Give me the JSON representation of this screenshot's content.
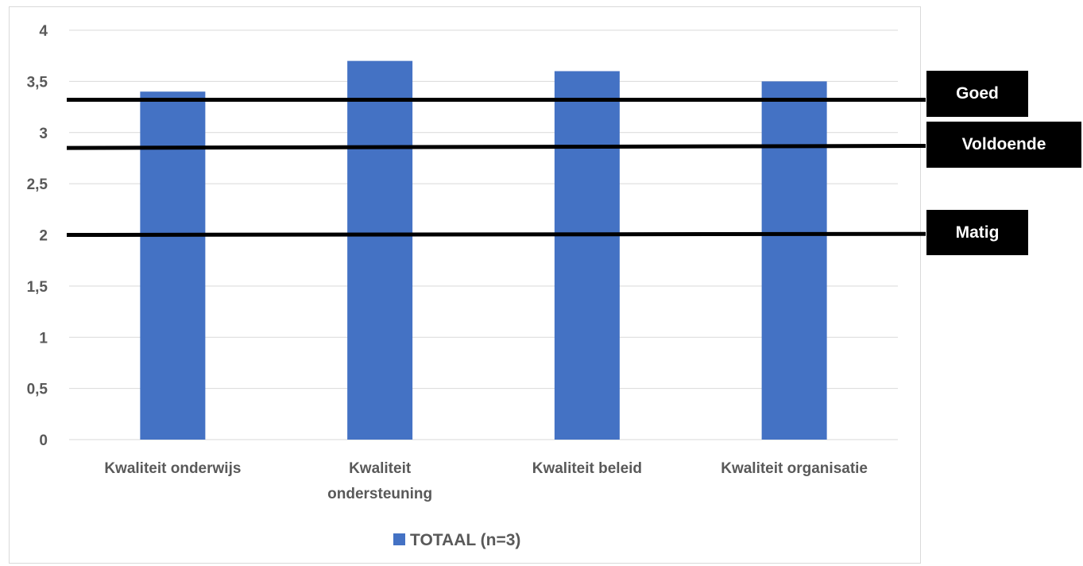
{
  "chart_data": {
    "type": "bar",
    "categories": [
      [
        "Kwaliteit onderwijs"
      ],
      [
        "Kwaliteit",
        "ondersteuning"
      ],
      [
        "Kwaliteit beleid"
      ],
      [
        "Kwaliteit organisatie"
      ]
    ],
    "series": [
      {
        "name": "TOTAAL (n=3)",
        "values": [
          3.4,
          3.7,
          3.6,
          3.5
        ],
        "color": "#4472c4"
      }
    ],
    "ylim": [
      0,
      4
    ],
    "yticks": [
      "0",
      "0,5",
      "1",
      "1,5",
      "2",
      "2,5",
      "3",
      "3,5",
      "4"
    ],
    "grid": true,
    "legend_position": "bottom",
    "reference_lines": [
      {
        "label": "Goed",
        "y_start": 3.32,
        "y_end": 3.32
      },
      {
        "label": "Voldoende",
        "y_start": 2.85,
        "y_end": 2.87
      },
      {
        "label": "Matig",
        "y_start": 2.0,
        "y_end": 2.01
      }
    ]
  }
}
